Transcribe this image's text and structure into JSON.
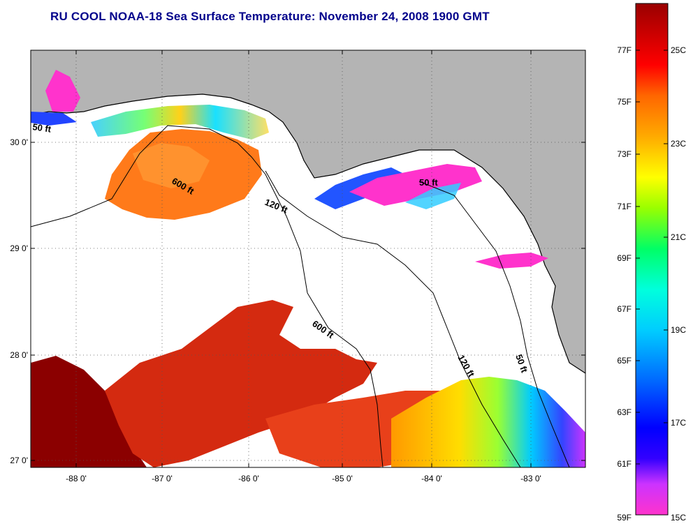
{
  "title": "RU COOL  NOAA-18  Sea Surface Temperature:  November 24, 2008 1900 GMT",
  "x_ticks": [
    "-88 0'",
    "-87 0'",
    "-86 0'",
    "-85 0'",
    "-84 0'",
    "-83 0'"
  ],
  "y_ticks": [
    "30 0'",
    "29 0'",
    "28 0'",
    "27 0'"
  ],
  "contour_labels": [
    "50 ft",
    "600 ft",
    "120 ft",
    "50 ft",
    "600 ft",
    "120 ft",
    "50 ft"
  ],
  "colorbar": {
    "fahrenheit": [
      "77F",
      "75F",
      "73F",
      "71F",
      "69F",
      "67F",
      "65F",
      "63F",
      "61F",
      "59F"
    ],
    "celsius": [
      "25C",
      "23C",
      "21C",
      "19C",
      "17C",
      "15C"
    ]
  },
  "colors": {
    "title": "#00008b",
    "land": "#b4b4b4",
    "ocean_nodata": "#ffffff"
  }
}
